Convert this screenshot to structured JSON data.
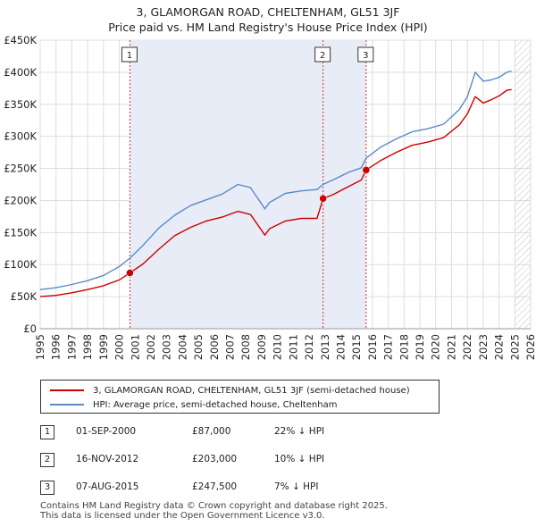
{
  "chart_data": {
    "type": "line",
    "title": "3, GLAMORGAN ROAD, CHELTENHAM, GL51 3JF",
    "subtitle": "Price paid vs. HM Land Registry's House Price Index (HPI)",
    "xlim": [
      1995,
      2026
    ],
    "ylim": [
      0,
      450000
    ],
    "x_ticks": [
      "1995",
      "1996",
      "1997",
      "1998",
      "1999",
      "2000",
      "2001",
      "2002",
      "2003",
      "2004",
      "2005",
      "2006",
      "2007",
      "2008",
      "2009",
      "2010",
      "2011",
      "2012",
      "2013",
      "2014",
      "2015",
      "2016",
      "2017",
      "2018",
      "2019",
      "2020",
      "2021",
      "2022",
      "2023",
      "2024",
      "2025",
      "2026"
    ],
    "y_ticks": [
      {
        "value": 0,
        "label": "£0"
      },
      {
        "value": 50000,
        "label": "£50K"
      },
      {
        "value": 100000,
        "label": "£100K"
      },
      {
        "value": 150000,
        "label": "£150K"
      },
      {
        "value": 200000,
        "label": "£200K"
      },
      {
        "value": 250000,
        "label": "£250K"
      },
      {
        "value": 300000,
        "label": "£300K"
      },
      {
        "value": 350000,
        "label": "£350K"
      },
      {
        "value": 400000,
        "label": "£400K"
      },
      {
        "value": 450000,
        "label": "£450K"
      }
    ],
    "series": [
      {
        "name": "3, GLAMORGAN ROAD, CHELTENHAM, GL51 3JF (semi-detached house)",
        "color": "#cc0000",
        "x": [
          1995.0,
          1996.0,
          1997.0,
          1998.0,
          1999.0,
          2000.0,
          2000.67,
          2001.5,
          2002.5,
          2003.5,
          2004.5,
          2005.5,
          2006.5,
          2007.5,
          2008.3,
          2009.2,
          2009.5,
          2010.5,
          2011.5,
          2012.5,
          2012.88,
          2013.5,
          2014.5,
          2015.3,
          2015.6,
          2016.5,
          2017.5,
          2018.5,
          2019.5,
          2020.5,
          2021.5,
          2022.0,
          2022.5,
          2023.0,
          2023.5,
          2024.0,
          2024.5,
          2024.8
        ],
        "y": [
          50000,
          52000,
          56000,
          61000,
          67000,
          76000,
          87000,
          101000,
          124000,
          145000,
          158000,
          168000,
          174000,
          183000,
          178000,
          146000,
          156000,
          168000,
          172000,
          172000,
          203000,
          209000,
          222000,
          232000,
          247500,
          262000,
          275000,
          286000,
          291000,
          298000,
          318000,
          335000,
          362000,
          352000,
          357000,
          363000,
          372000,
          373000
        ]
      },
      {
        "name": "HPI: Average price, semi-detached house, Cheltenham",
        "color": "#5b8ac7",
        "x": [
          1995.0,
          1996.0,
          1997.0,
          1998.0,
          1999.0,
          2000.0,
          2000.67,
          2001.5,
          2002.5,
          2003.5,
          2004.5,
          2005.5,
          2006.5,
          2007.5,
          2008.3,
          2009.2,
          2009.5,
          2010.5,
          2011.5,
          2012.5,
          2012.88,
          2013.5,
          2014.5,
          2015.3,
          2015.6,
          2016.5,
          2017.5,
          2018.5,
          2019.5,
          2020.5,
          2021.5,
          2022.0,
          2022.5,
          2023.0,
          2023.5,
          2024.0,
          2024.5,
          2024.8
        ],
        "y": [
          61000,
          64000,
          69000,
          75000,
          83000,
          97000,
          110000,
          130000,
          157000,
          177000,
          192000,
          201000,
          210000,
          225000,
          220000,
          187000,
          197000,
          211000,
          215000,
          217000,
          225000,
          232000,
          244000,
          251000,
          266000,
          283000,
          296000,
          307000,
          312000,
          319000,
          342000,
          362000,
          400000,
          386000,
          388000,
          392000,
          400000,
          402000
        ]
      }
    ],
    "sales": [
      {
        "num": "1",
        "x": 2000.67,
        "date": "01-SEP-2000",
        "price": 87000,
        "price_label": "£87,000",
        "hpi": "22% ↓ HPI"
      },
      {
        "num": "2",
        "x": 2012.88,
        "date": "16-NOV-2012",
        "price": 203000,
        "price_label": "£203,000",
        "hpi": "10% ↓ HPI"
      },
      {
        "num": "3",
        "x": 2015.6,
        "date": "07-AUG-2015",
        "price": 247500,
        "price_label": "£247,500",
        "hpi": "7% ↓ HPI"
      }
    ],
    "hatch_from": 2025.0
  },
  "legend": {
    "property_label": "3, GLAMORGAN ROAD, CHELTENHAM, GL51 3JF (semi-detached house)",
    "hpi_label": "HPI: Average price, semi-detached house, Cheltenham",
    "property_color": "#cc0000",
    "hpi_color": "#5b8ac7"
  },
  "footer": {
    "line1": "Contains HM Land Registry data © Crown copyright and database right 2025.",
    "line2": "This data is licensed under the Open Government Licence v3.0."
  }
}
